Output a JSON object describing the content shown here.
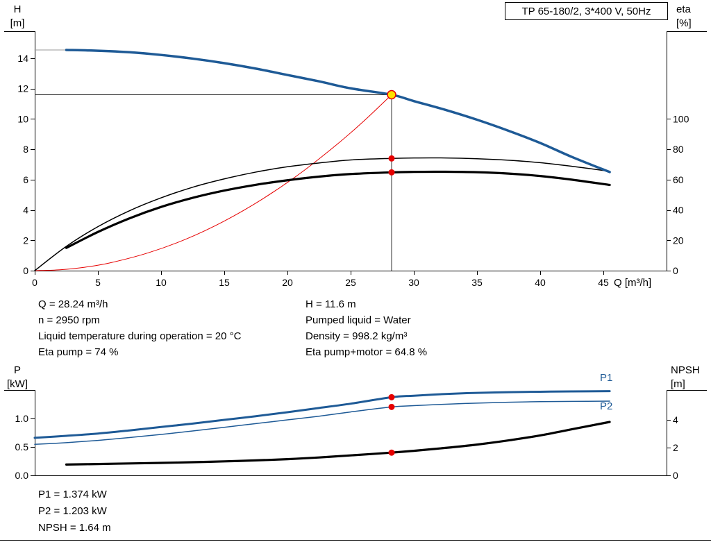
{
  "colors": {
    "curve_blue": "#1e5a96",
    "curve_black": "#000000",
    "duty_red": "#e60000",
    "duty_fill": "#ffe100",
    "leader_gray": "#9a9a9a",
    "guide_line": "#333333"
  },
  "labels": {
    "h_axis": "H",
    "h_unit": "[m]",
    "eta_axis": "eta",
    "eta_unit": "[%]",
    "q_axis": "Q [m³/h]",
    "p_axis": "P",
    "p_unit": "[kW]",
    "npsh_axis": "NPSH",
    "npsh_unit": "[m]",
    "p1_curve": "P1",
    "p2_curve": "P2"
  },
  "info_top": {
    "left": [
      "Q = 28.24 m³/h",
      "n = 2950 rpm",
      "Liquid temperature during operation = 20 °C",
      "Eta pump = 74 %"
    ],
    "right": [
      "H = 11.6 m",
      "Pumped liquid = Water",
      "Density = 998.2 kg/m³",
      "Eta pump+motor = 64.8 %"
    ]
  },
  "info_bottom": [
    "P1 = 1.374 kW",
    "P2 = 1.203 kW",
    "NPSH = 1.64 m"
  ],
  "chart_data": [
    {
      "type": "line",
      "title": "TP 65-180/2, 3*400 V, 50Hz",
      "xlabel": "Q [m³/h]",
      "ylabel_left": "H [m]",
      "ylabel_right": "eta [%]",
      "xlim": [
        0,
        50
      ],
      "ylim_left": [
        0,
        15.8
      ],
      "ylim_right": [
        0,
        158
      ],
      "grid": false,
      "legend": "none",
      "x_ticks": [
        0,
        5,
        10,
        15,
        20,
        25,
        30,
        35,
        40,
        45
      ],
      "y_left_ticks": [
        0,
        2,
        4,
        6,
        8,
        10,
        12,
        14
      ],
      "y_right_ticks": [
        0,
        20,
        40,
        60,
        80,
        100
      ],
      "duty_point": {
        "q": 28.24,
        "h": 11.6
      },
      "markers": [
        {
          "name": "eta-pump-at-duty",
          "q": 28.24,
          "value": 74,
          "axis": "right"
        },
        {
          "name": "eta-pump-motor-at-duty",
          "q": 28.24,
          "value": 64.8,
          "axis": "right"
        }
      ],
      "series": [
        {
          "name": "H leader",
          "axis": "left",
          "color": "gray",
          "width": 1,
          "points": [
            [
              0,
              14.55
            ],
            [
              2.5,
              14.55
            ]
          ]
        },
        {
          "name": "System curve",
          "axis": "left",
          "color": "red",
          "width": 1,
          "points": [
            [
              0,
              0
            ],
            [
              2,
              0.06
            ],
            [
              4,
              0.23
            ],
            [
              6,
              0.52
            ],
            [
              9,
              1.18
            ],
            [
              12,
              2.09
            ],
            [
              15,
              3.27
            ],
            [
              18,
              4.71
            ],
            [
              21,
              6.41
            ],
            [
              24,
              8.38
            ],
            [
              26,
              9.83
            ],
            [
              28.24,
              11.6
            ]
          ]
        },
        {
          "name": "Eta pump+motor",
          "axis": "right",
          "color": "black",
          "width": 3.2,
          "points": [
            [
              2.5,
              15
            ],
            [
              5,
              25.5
            ],
            [
              7.5,
              34.5
            ],
            [
              10,
              42
            ],
            [
              12.5,
              48
            ],
            [
              15,
              52.8
            ],
            [
              17.5,
              56.6
            ],
            [
              20,
              59.6
            ],
            [
              22.5,
              62
            ],
            [
              25,
              63.7
            ],
            [
              28.24,
              64.8
            ],
            [
              30,
              65.1
            ],
            [
              32.5,
              65.2
            ],
            [
              35,
              64.9
            ],
            [
              37.5,
              64
            ],
            [
              40,
              62.4
            ],
            [
              42.5,
              60
            ],
            [
              45.5,
              56.5
            ]
          ]
        },
        {
          "name": "Eta pump",
          "axis": "right",
          "color": "black",
          "width": 1.5,
          "points": [
            [
              0,
              0
            ],
            [
              2.5,
              16
            ],
            [
              5,
              29
            ],
            [
              7.5,
              39.5
            ],
            [
              10,
              48
            ],
            [
              12.5,
              55
            ],
            [
              15,
              60.5
            ],
            [
              17.5,
              65
            ],
            [
              20,
              68.5
            ],
            [
              22.5,
              71
            ],
            [
              25,
              73
            ],
            [
              28.24,
              74
            ],
            [
              30,
              74.3
            ],
            [
              32.5,
              74.3
            ],
            [
              35,
              73.8
            ],
            [
              37.5,
              72.8
            ],
            [
              40,
              71.2
            ],
            [
              42.5,
              68.8
            ],
            [
              45.5,
              65.5
            ]
          ]
        },
        {
          "name": "Pump curve H",
          "axis": "left",
          "color": "blue",
          "width": 3.5,
          "points": [
            [
              2.5,
              14.55
            ],
            [
              5,
              14.5
            ],
            [
              7.5,
              14.4
            ],
            [
              10,
              14.22
            ],
            [
              12.5,
              13.98
            ],
            [
              15,
              13.68
            ],
            [
              17.5,
              13.32
            ],
            [
              20,
              12.9
            ],
            [
              22.5,
              12.48
            ],
            [
              25,
              12.02
            ],
            [
              28.24,
              11.6
            ],
            [
              30,
              11.18
            ],
            [
              32.5,
              10.6
            ],
            [
              35,
              9.95
            ],
            [
              37.5,
              9.22
            ],
            [
              40,
              8.42
            ],
            [
              42.5,
              7.5
            ],
            [
              45.5,
              6.5
            ]
          ]
        }
      ]
    },
    {
      "type": "line",
      "title": "",
      "xlabel": "Q [m³/h]",
      "ylabel_left": "P [kW]",
      "ylabel_right": "NPSH [m]",
      "xlim": [
        0,
        50
      ],
      "ylim_left": [
        0,
        1.5
      ],
      "ylim_right": [
        0,
        6.2
      ],
      "grid": false,
      "legend": "inline-right",
      "y_left_ticks": [
        0,
        0.5,
        1
      ],
      "y_left_tick_labels": [
        "0.0",
        "0.5",
        "1.0"
      ],
      "y_right_ticks": [
        0,
        2,
        4
      ],
      "markers": [
        {
          "name": "p1-at-duty",
          "q": 28.24,
          "value": 1.374,
          "axis": "left"
        },
        {
          "name": "p2-at-duty",
          "q": 28.24,
          "value": 1.203,
          "axis": "left"
        },
        {
          "name": "npsh-at-duty",
          "q": 28.24,
          "value": 1.64,
          "axis": "right"
        }
      ],
      "series": [
        {
          "name": "NPSH",
          "axis": "right",
          "color": "black",
          "width": 3.2,
          "points": [
            [
              2.5,
              0.78
            ],
            [
              5,
              0.82
            ],
            [
              7.5,
              0.86
            ],
            [
              10,
              0.9
            ],
            [
              12.5,
              0.95
            ],
            [
              15,
              1.01
            ],
            [
              17.5,
              1.08
            ],
            [
              20,
              1.17
            ],
            [
              22.5,
              1.29
            ],
            [
              25,
              1.44
            ],
            [
              28.24,
              1.64
            ],
            [
              30,
              1.77
            ],
            [
              32.5,
              1.98
            ],
            [
              35,
              2.22
            ],
            [
              37.5,
              2.52
            ],
            [
              40,
              2.88
            ],
            [
              42.5,
              3.32
            ],
            [
              45.5,
              3.85
            ]
          ]
        },
        {
          "name": "P2",
          "axis": "left",
          "color": "blue",
          "width": 1.5,
          "points": [
            [
              0,
              0.545
            ],
            [
              2.5,
              0.575
            ],
            [
              5,
              0.615
            ],
            [
              7.5,
              0.665
            ],
            [
              10,
              0.72
            ],
            [
              12.5,
              0.78
            ],
            [
              15,
              0.845
            ],
            [
              17.5,
              0.91
            ],
            [
              20,
              0.975
            ],
            [
              22.5,
              1.04
            ],
            [
              25,
              1.115
            ],
            [
              28.24,
              1.203
            ],
            [
              30,
              1.225
            ],
            [
              32.5,
              1.25
            ],
            [
              35,
              1.27
            ],
            [
              37.5,
              1.285
            ],
            [
              40,
              1.295
            ],
            [
              42.5,
              1.3
            ],
            [
              45.5,
              1.305
            ]
          ]
        },
        {
          "name": "P1",
          "axis": "left",
          "color": "blue",
          "width": 3,
          "points": [
            [
              0,
              0.66
            ],
            [
              2.5,
              0.695
            ],
            [
              5,
              0.735
            ],
            [
              7.5,
              0.79
            ],
            [
              10,
              0.85
            ],
            [
              12.5,
              0.91
            ],
            [
              15,
              0.975
            ],
            [
              17.5,
              1.04
            ],
            [
              20,
              1.11
            ],
            [
              22.5,
              1.185
            ],
            [
              25,
              1.26
            ],
            [
              28.24,
              1.374
            ],
            [
              30,
              1.4
            ],
            [
              32.5,
              1.43
            ],
            [
              35,
              1.45
            ],
            [
              37.5,
              1.462
            ],
            [
              40,
              1.47
            ],
            [
              42.5,
              1.475
            ],
            [
              45.5,
              1.48
            ]
          ]
        }
      ]
    }
  ]
}
